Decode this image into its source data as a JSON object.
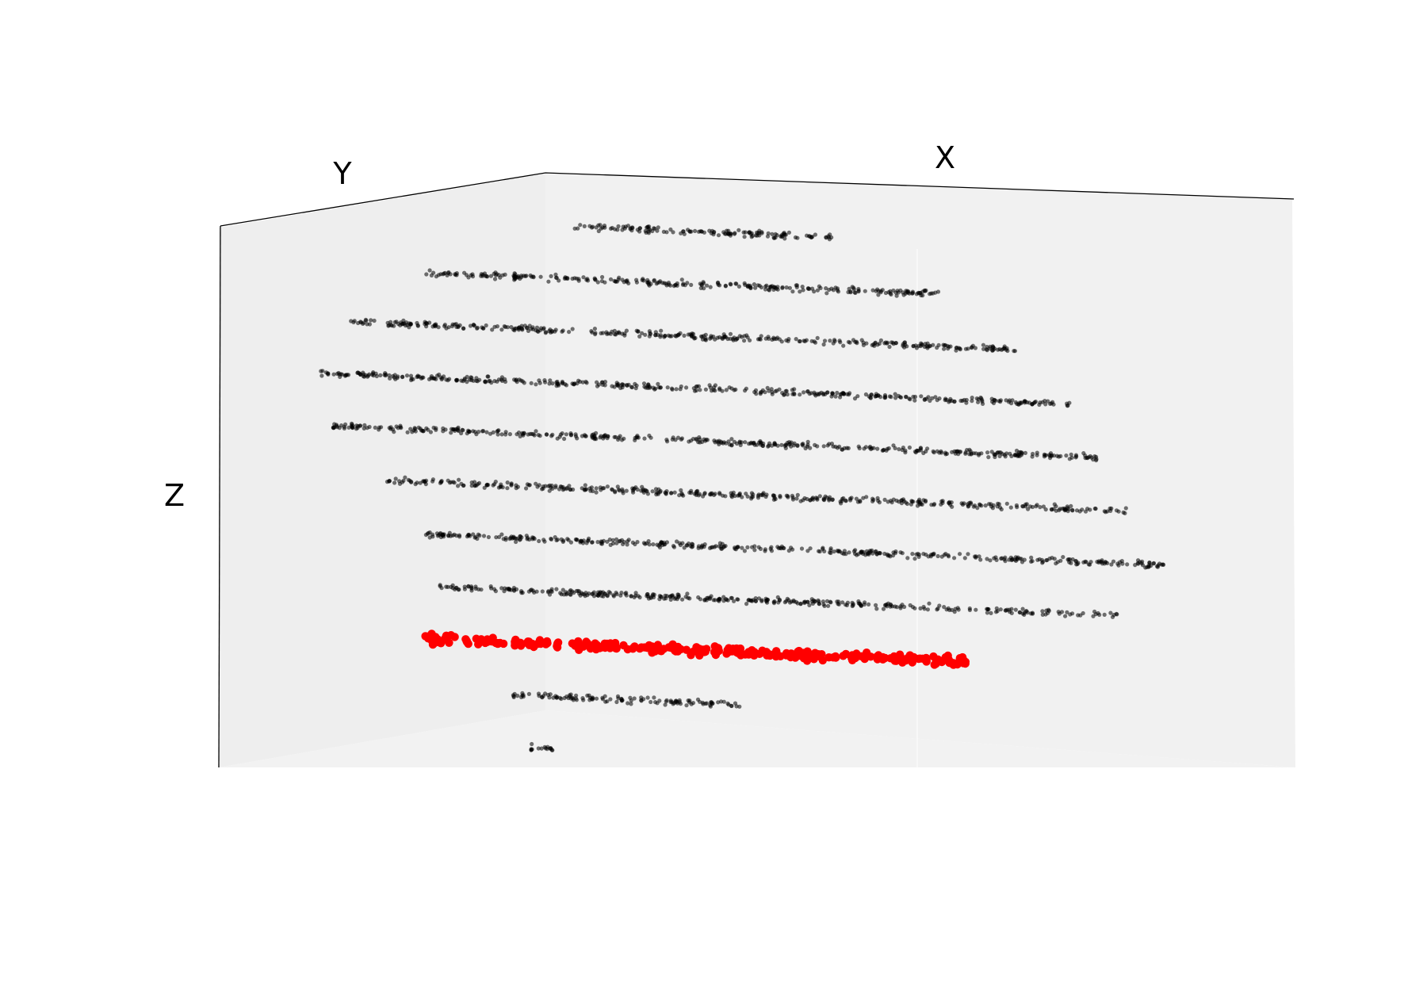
{
  "chart_data": {
    "type": "scatter",
    "projection": "3d",
    "axes": {
      "x_label": "X",
      "y_label": "Y",
      "z_label": "Z"
    },
    "grid": false,
    "ticks": false,
    "pane_color": "#f2f2f2",
    "series": [
      {
        "color": "#000000",
        "opacity": 0.55,
        "marker": "small-circle",
        "bands": [
          {
            "z": 10,
            "x": [
              -2.5,
              3.0
            ]
          },
          {
            "z": 9,
            "x": [
              -5.6,
              5.2
            ]
          },
          {
            "z": 8,
            "x": [
              -7.2,
              6.9
            ]
          },
          {
            "z": 7,
            "x": [
              -7.8,
              7.9
            ]
          },
          {
            "z": 6,
            "x": [
              -7.6,
              8.6
            ]
          },
          {
            "z": 5,
            "x": [
              -6.4,
              9.1
            ]
          },
          {
            "z": 4,
            "x": [
              -5.6,
              9.9
            ]
          },
          {
            "z": 3,
            "x": [
              -5.3,
              8.9
            ]
          },
          {
            "z": 1,
            "x": [
              -3.8,
              1.0
            ]
          },
          {
            "z": 0,
            "x": [
              -3.4,
              -2.8
            ]
          }
        ]
      },
      {
        "color": "#ff0000",
        "opacity": 1.0,
        "marker": "circle",
        "bands": [
          {
            "z": 2,
            "x": [
              -5.6,
              5.8
            ]
          }
        ]
      }
    ]
  }
}
